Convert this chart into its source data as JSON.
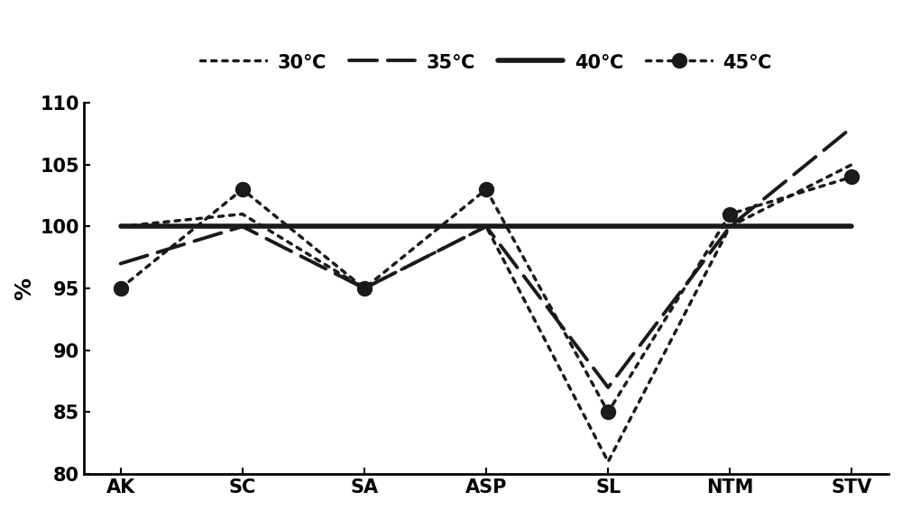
{
  "categories": [
    "AK",
    "SC",
    "SA",
    "ASP",
    "SL",
    "NTM",
    "STV"
  ],
  "series": [
    {
      "label": "30℃",
      "values": [
        100,
        101,
        95,
        100,
        81,
        100,
        105
      ],
      "linestyle_key": "dotted_fine",
      "linewidth": 2.5,
      "marker": null,
      "markersize": 0
    },
    {
      "label": "35℃",
      "values": [
        97,
        100,
        95,
        100,
        87,
        100,
        108
      ],
      "linestyle_key": "long_dash",
      "linewidth": 2.8,
      "marker": null,
      "markersize": 0
    },
    {
      "label": "40℃",
      "values": [
        100,
        100,
        100,
        100,
        100,
        100,
        100
      ],
      "linestyle_key": "solid",
      "linewidth": 4.0,
      "marker": null,
      "markersize": 0
    },
    {
      "label": "45℃",
      "values": [
        95,
        103,
        95,
        103,
        85,
        101,
        104
      ],
      "linestyle_key": "dotted_thick",
      "linewidth": 2.5,
      "marker": "o",
      "markersize": 11
    }
  ],
  "ylabel": "%",
  "ylim": [
    80,
    110
  ],
  "yticks": [
    80,
    85,
    90,
    95,
    100,
    105,
    110
  ],
  "background_color": "#ffffff",
  "legend_fontsize": 15,
  "axis_fontsize": 18,
  "tick_fontsize": 15
}
